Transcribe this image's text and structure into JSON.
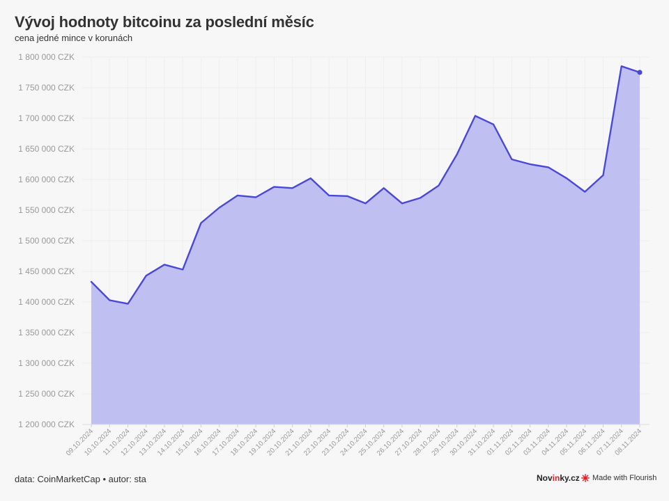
{
  "header": {
    "title": "Vývoj hodnoty bitcoinu za poslední měsíc",
    "subtitle": "cena jedné mince v korunách"
  },
  "footer": {
    "source": "data: CoinMarketCap • autor: sta",
    "brand_prefix": "Nov",
    "brand_accent": "in",
    "brand_suffix": "ky.cz",
    "made_with": "Made with Flourish"
  },
  "colors": {
    "line": "#4a48d6",
    "area": "#bfbff2",
    "background": "#f7f7f7",
    "brand_accent": "#e5202b"
  },
  "chart_data": {
    "type": "area",
    "title": "Vývoj hodnoty bitcoinu za poslední měsíc",
    "subtitle": "cena jedné mince v korunách",
    "xlabel": "",
    "ylabel": "",
    "ylim": [
      1200000,
      1800000
    ],
    "yticks": [
      1200000,
      1250000,
      1300000,
      1350000,
      1400000,
      1450000,
      1500000,
      1550000,
      1600000,
      1650000,
      1700000,
      1750000,
      1800000
    ],
    "ytick_labels": [
      "1 200 000 CZK",
      "1 250 000 CZK",
      "1 300 000 CZK",
      "1 350 000 CZK",
      "1 400 000 CZK",
      "1 450 000 CZK",
      "1 500 000 CZK",
      "1 550 000 CZK",
      "1 600 000 CZK",
      "1 650 000 CZK",
      "1 700 000 CZK",
      "1 750 000 CZK",
      "1 800 000 CZK"
    ],
    "grid": true,
    "categories": [
      "09.10.2024",
      "10.10.2024",
      "11.10.2024",
      "12.10.2024",
      "13.10.2024",
      "14.10.2024",
      "15.10.2024",
      "16.10.2024",
      "17.10.2024",
      "18.10.2024",
      "19.10.2024",
      "20.10.2024",
      "21.10.2024",
      "22.10.2024",
      "23.10.2024",
      "24.10.2024",
      "25.10.2024",
      "26.10.2024",
      "27.10.2024",
      "28.10.2024",
      "29.10.2024",
      "30.10.2024",
      "31.10.2024",
      "01.11.2024",
      "02.11.2024",
      "03.11.2024",
      "04.11.2024",
      "05.11.2024",
      "06.11.2024",
      "07.11.2024",
      "08.11.2024"
    ],
    "series": [
      {
        "values": [
          1433000,
          1403000,
          1397000,
          1443000,
          1461000,
          1453000,
          1529000,
          1554000,
          1574000,
          1571000,
          1588000,
          1586000,
          1602000,
          1574000,
          1573000,
          1561000,
          1586000,
          1561000,
          1570000,
          1590000,
          1641000,
          1704000,
          1690000,
          1633000,
          1625000,
          1620000,
          1602000,
          1580000,
          1607000,
          1785000,
          1775000
        ]
      }
    ]
  }
}
